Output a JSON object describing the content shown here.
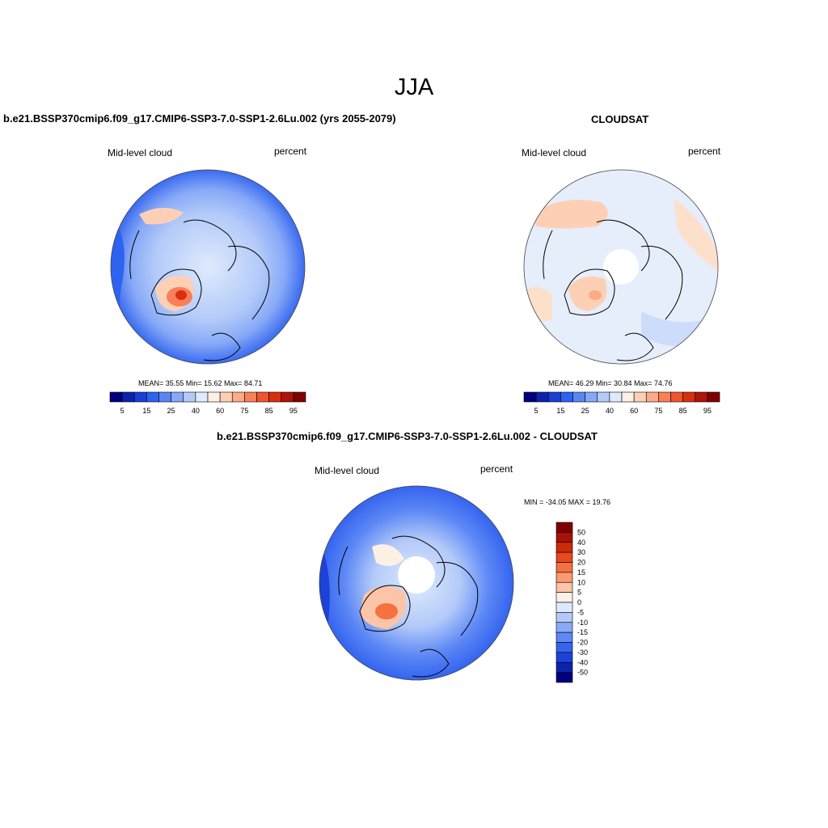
{
  "title": "JJA",
  "panels": [
    {
      "title": "b.e21.BSSP370cmip6.f09_g17.CMIP6-SSP3-7.0-SSP1-2.6Lu.002 (yrs 2055-2079)",
      "left_label": "Mid-level cloud",
      "right_label": "percent",
      "stats": "MEAN=  35.55  Min=  15.62  Max=  84.71"
    },
    {
      "title": "CLOUDSAT",
      "left_label": "Mid-level cloud",
      "right_label": "percent",
      "stats": "MEAN=  46.29  Min=  30.84  Max=  74.76"
    },
    {
      "title": "b.e21.BSSP370cmip6.f09_g17.CMIP6-SSP3-7.0-SSP1-2.6Lu.002 - CLOUDSAT",
      "left_label": "Mid-level cloud",
      "right_label": "percent",
      "stats": "MIN = -34.05 MAX =  19.76"
    }
  ],
  "colorbar_main": {
    "colors": [
      "#00007f",
      "#0b22aa",
      "#1a3fd6",
      "#2e62f0",
      "#5a86f5",
      "#86a8f7",
      "#b3caf9",
      "#dfeafc",
      "#fef0e4",
      "#fdd0b5",
      "#fcaa88",
      "#f88058",
      "#ef5530",
      "#d8300f",
      "#ae1407",
      "#7f0000"
    ],
    "tick_labels": [
      "5",
      "15",
      "25",
      "40",
      "60",
      "75",
      "85",
      "95"
    ]
  },
  "colorbar_diff": {
    "colors": [
      "#7f0000",
      "#a81205",
      "#cc2a0b",
      "#e84a1c",
      "#f5713f",
      "#fa9a70",
      "#fcc4a8",
      "#fdf0e4",
      "#deeafc",
      "#b3caf9",
      "#89aaf7",
      "#5d88f5",
      "#3464f0",
      "#1c42d8",
      "#0c24aa",
      "#00007f"
    ],
    "tick_labels": [
      "50",
      "40",
      "30",
      "20",
      "15",
      "10",
      "5",
      "0",
      "-5",
      "-10",
      "-15",
      "-20",
      "-30",
      "-40",
      "-50"
    ]
  }
}
